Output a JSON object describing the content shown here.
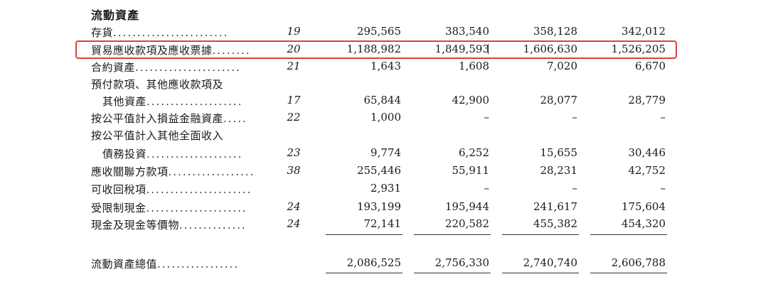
{
  "section_title": "流動資產",
  "rows": [
    {
      "label": "存貨",
      "note": "19",
      "v": [
        "295,565",
        "383,540",
        "358,128",
        "342,012"
      ]
    },
    {
      "label": "貿易應收款項及應收票據",
      "note": "20",
      "v": [
        "1,188,982",
        "1,849,593",
        "1,606,630",
        "1,526,205"
      ]
    },
    {
      "label": "合約資產",
      "note": "21",
      "v": [
        "1,643",
        "1,608",
        "7,020",
        "6,670"
      ]
    },
    {
      "label": "預付款項、其他應收款項及",
      "note": "",
      "v": [
        "",
        "",
        "",
        ""
      ]
    },
    {
      "label": "其他資產",
      "note": "17",
      "v": [
        "65,844",
        "42,900",
        "28,077",
        "28,779"
      ]
    },
    {
      "label": "按公平值計入損益金融資產",
      "note": "22",
      "v": [
        "1,000",
        "–",
        "–",
        "–"
      ]
    },
    {
      "label": "按公平值計入其他全面收入",
      "note": "",
      "v": [
        "",
        "",
        "",
        ""
      ]
    },
    {
      "label": "債務投資",
      "note": "23",
      "v": [
        "9,774",
        "6,252",
        "15,655",
        "30,446"
      ]
    },
    {
      "label": "應收關聯方款項",
      "note": "38",
      "v": [
        "255,446",
        "55,911",
        "28,231",
        "42,752"
      ]
    },
    {
      "label": "可收回稅項",
      "note": "",
      "v": [
        "2,931",
        "–",
        "–",
        "–"
      ]
    },
    {
      "label": "受限制現金",
      "note": "24",
      "v": [
        "193,199",
        "195,944",
        "241,617",
        "175,604"
      ]
    },
    {
      "label": "現金及現金等價物",
      "note": "24",
      "v": [
        "72,141",
        "220,582",
        "455,382",
        "454,320"
      ]
    }
  ],
  "total": {
    "label": "流動資產總值",
    "v": [
      "2,086,525",
      "2,756,330",
      "2,740,740",
      "2,606,788"
    ]
  },
  "highlight_color": "#d9423d"
}
